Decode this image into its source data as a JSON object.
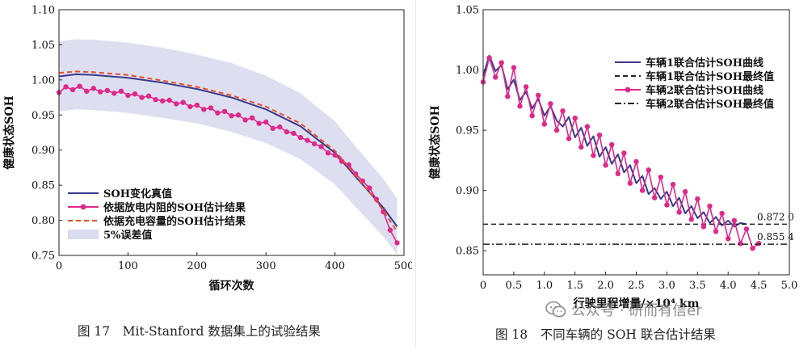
{
  "chart_data": [
    {
      "type": "line",
      "xlabel": "循环次数",
      "ylabel": "健康状态SOH",
      "xlim": [
        0,
        500
      ],
      "ylim": [
        0.75,
        1.1
      ],
      "xticks": [
        0,
        100,
        200,
        300,
        400,
        500
      ],
      "xtick_labels": [
        "0",
        "100",
        "200",
        "300",
        "400",
        "500"
      ],
      "yticks": [
        0.75,
        0.8,
        0.85,
        0.9,
        0.95,
        1.0,
        1.05,
        1.1
      ],
      "ytick_labels": [
        "0.75",
        "0.80",
        "0.85",
        "0.90",
        "0.95",
        "1.00",
        "1.05",
        "1.10"
      ],
      "legend_position": "bottom-left",
      "series": [
        {
          "name": "SOH变化真值",
          "style": "solid",
          "color": "#3a3a8c",
          "x": [
            0,
            25,
            50,
            100,
            150,
            200,
            250,
            300,
            350,
            400,
            430,
            450,
            470,
            490
          ],
          "y": [
            1.005,
            1.008,
            1.007,
            1.003,
            0.996,
            0.987,
            0.975,
            0.958,
            0.934,
            0.896,
            0.862,
            0.84,
            0.818,
            0.791
          ]
        },
        {
          "name": "依据放电内阻的SOH估计结果",
          "style": "line-marker",
          "color": "#e0288a",
          "x": [
            0,
            10,
            20,
            30,
            40,
            50,
            60,
            70,
            80,
            90,
            100,
            110,
            120,
            130,
            140,
            150,
            160,
            170,
            180,
            190,
            200,
            210,
            220,
            230,
            240,
            250,
            260,
            270,
            280,
            290,
            300,
            310,
            320,
            330,
            340,
            350,
            360,
            370,
            380,
            390,
            400,
            410,
            420,
            430,
            440,
            450,
            460,
            470,
            480,
            490
          ],
          "y": [
            0.982,
            0.99,
            0.986,
            0.991,
            0.984,
            0.988,
            0.983,
            0.985,
            0.981,
            0.984,
            0.978,
            0.98,
            0.975,
            0.977,
            0.972,
            0.97,
            0.971,
            0.966,
            0.968,
            0.962,
            0.964,
            0.958,
            0.96,
            0.953,
            0.955,
            0.949,
            0.95,
            0.943,
            0.946,
            0.938,
            0.94,
            0.931,
            0.933,
            0.926,
            0.924,
            0.918,
            0.914,
            0.909,
            0.905,
            0.896,
            0.893,
            0.884,
            0.879,
            0.866,
            0.856,
            0.846,
            0.83,
            0.812,
            0.786,
            0.768
          ]
        },
        {
          "name": "依据充电容量的SOH估计结果",
          "style": "dashed",
          "color": "#e8502a",
          "x": [
            0,
            25,
            50,
            100,
            150,
            200,
            250,
            300,
            350,
            400,
            430,
            450,
            470,
            490
          ],
          "y": [
            1.01,
            1.012,
            1.011,
            1.007,
            0.999,
            0.99,
            0.978,
            0.962,
            0.938,
            0.899,
            0.864,
            0.84,
            0.814,
            0.784
          ]
        }
      ],
      "band": {
        "name": "5%误差值",
        "color": "#d9dcef",
        "x": [
          0,
          25,
          50,
          100,
          150,
          200,
          250,
          300,
          350,
          400,
          430,
          450,
          470,
          490
        ],
        "upper": [
          1.055,
          1.058,
          1.057,
          1.053,
          1.046,
          1.036,
          1.024,
          1.006,
          0.981,
          0.941,
          0.905,
          0.882,
          0.859,
          0.831
        ],
        "lower": [
          0.955,
          0.958,
          0.957,
          0.953,
          0.946,
          0.938,
          0.926,
          0.91,
          0.887,
          0.851,
          0.819,
          0.798,
          0.777,
          0.751
        ]
      }
    },
    {
      "type": "line",
      "xlabel": "行驶里程增量/×10⁴ km",
      "ylabel": "健康状态SOH",
      "xlim": [
        0,
        5.0
      ],
      "ylim": [
        0.83,
        1.05
      ],
      "xticks": [
        0,
        0.5,
        1.0,
        1.5,
        2.0,
        2.5,
        3.0,
        3.5,
        4.0,
        4.5,
        5.0
      ],
      "xtick_labels": [
        "0",
        "0.5",
        "1.0",
        "1.5",
        "2.0",
        "2.5",
        "3.0",
        "3.5",
        "4.0",
        "4.5",
        "5.0"
      ],
      "yticks": [
        0.85,
        0.9,
        0.95,
        1.0,
        1.05
      ],
      "ytick_labels": [
        "0.85",
        "0.90",
        "0.95",
        "1.00",
        "1.05"
      ],
      "legend_position": "top-right",
      "series": [
        {
          "name": "车辆1联合估计SOH曲线",
          "style": "solid",
          "color": "#3a3a8c",
          "x": [
            0,
            0.1,
            0.2,
            0.3,
            0.4,
            0.5,
            0.6,
            0.7,
            0.8,
            0.9,
            1.0,
            1.1,
            1.2,
            1.3,
            1.4,
            1.5,
            1.6,
            1.7,
            1.8,
            1.9,
            2.0,
            2.1,
            2.2,
            2.3,
            2.4,
            2.5,
            2.6,
            2.7,
            2.8,
            2.9,
            3.0,
            3.1,
            3.2,
            3.3,
            3.4,
            3.5,
            3.6,
            3.7,
            3.8,
            3.9,
            4.0,
            4.1,
            4.2,
            4.3
          ],
          "y": [
            0.995,
            1.012,
            0.999,
            1.004,
            0.984,
            0.992,
            0.975,
            0.982,
            0.968,
            0.976,
            0.962,
            0.97,
            0.958,
            0.953,
            0.961,
            0.944,
            0.952,
            0.937,
            0.945,
            0.928,
            0.936,
            0.922,
            0.93,
            0.915,
            0.921,
            0.906,
            0.912,
            0.897,
            0.902,
            0.893,
            0.899,
            0.887,
            0.894,
            0.881,
            0.887,
            0.877,
            0.882,
            0.873,
            0.878,
            0.871,
            0.875,
            0.87,
            0.873,
            0.872
          ]
        },
        {
          "name": "车辆1联合估计SOH最终值",
          "style": "dashed",
          "color": "#222222",
          "value": 0.872,
          "value_label": "0.872 0"
        },
        {
          "name": "车辆2联合估计SOH曲线",
          "style": "line-marker",
          "color": "#e0288a",
          "x": [
            0,
            0.1,
            0.2,
            0.3,
            0.4,
            0.5,
            0.6,
            0.7,
            0.8,
            0.9,
            1.0,
            1.1,
            1.2,
            1.3,
            1.4,
            1.5,
            1.6,
            1.7,
            1.8,
            1.9,
            2.0,
            2.1,
            2.2,
            2.3,
            2.4,
            2.5,
            2.6,
            2.7,
            2.8,
            2.9,
            3.0,
            3.1,
            3.2,
            3.3,
            3.4,
            3.5,
            3.6,
            3.7,
            3.8,
            3.9,
            4.0,
            4.1,
            4.2,
            4.3,
            4.4,
            4.5
          ],
          "y": [
            0.99,
            1.01,
            0.994,
            1.006,
            0.978,
            1.002,
            0.97,
            0.986,
            0.962,
            0.979,
            0.955,
            0.972,
            0.95,
            0.966,
            0.943,
            0.96,
            0.936,
            0.953,
            0.929,
            0.946,
            0.921,
            0.938,
            0.914,
            0.931,
            0.906,
            0.924,
            0.9,
            0.917,
            0.894,
            0.911,
            0.888,
            0.905,
            0.882,
            0.899,
            0.876,
            0.893,
            0.87,
            0.887,
            0.866,
            0.881,
            0.86,
            0.875,
            0.856,
            0.868,
            0.852,
            0.856
          ]
        },
        {
          "name": "车辆2联合估计SOH最终值",
          "style": "dashdot",
          "color": "#222222",
          "value": 0.8554,
          "value_label": "0.855 4"
        }
      ]
    }
  ],
  "captions": {
    "left": "图 17　Mit-Stanford 数据集上的试验结果",
    "right": "图 18　不同车辆的 SOH 联合估计结果"
  },
  "watermark": {
    "icon": "wechat-icon",
    "text": "公众号 · 研而有信er"
  }
}
